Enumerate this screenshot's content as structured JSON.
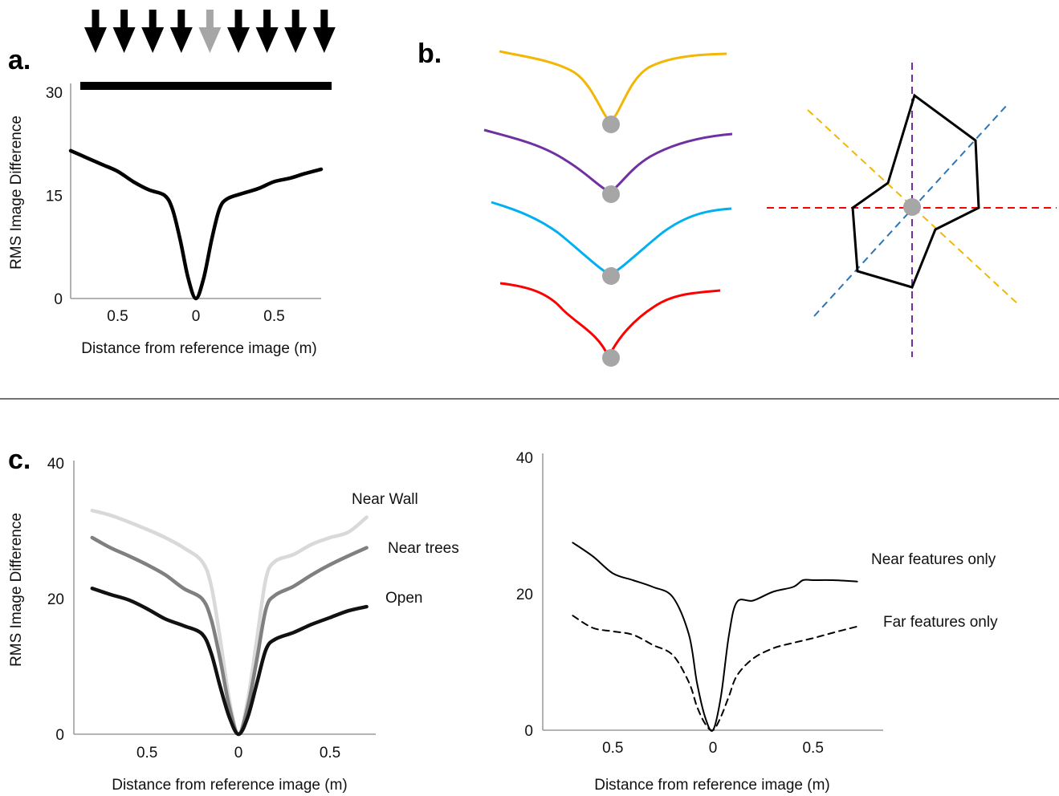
{
  "panels": {
    "a": "a.",
    "b": "b.",
    "c": "c."
  },
  "colors": {
    "black": "#000000",
    "grey_arrow": "#a6a6a6",
    "orange": "#f2b705",
    "purple": "#7030a0",
    "cyan": "#00b0f0",
    "red": "#ff0000",
    "marker_grey": "#a6a6a6",
    "dash_orange": "#f2b705",
    "dash_blue": "#2e75b6",
    "dash_purple": "#7030a0",
    "dash_red": "#ff0000",
    "near_wall": "#d9d9d9",
    "near_trees": "#808080",
    "open": "#111111"
  },
  "chart_data": [
    {
      "id": "a",
      "type": "line",
      "xlabel": "Distance from reference image (m)",
      "ylabel": "RMS Image Difference",
      "yticks": [
        "0",
        "15",
        "30"
      ],
      "xticks": [
        "0.5",
        "0",
        "0.5"
      ],
      "xlim": [
        -0.8,
        0.8
      ],
      "ylim": [
        0,
        30
      ],
      "arrows": {
        "count": 9,
        "highlighted_index": 4
      },
      "series": [
        {
          "color": "black",
          "x": [
            -0.8,
            -0.7,
            -0.6,
            -0.5,
            -0.4,
            -0.3,
            -0.2,
            -0.15,
            -0.1,
            -0.05,
            0,
            0.05,
            0.1,
            0.15,
            0.2,
            0.3,
            0.4,
            0.5,
            0.6,
            0.7,
            0.8
          ],
          "y": [
            21.5,
            20.5,
            19.5,
            18.5,
            17,
            15.8,
            15,
            13,
            8.5,
            3,
            0,
            3,
            8.5,
            13,
            14.5,
            15.3,
            16,
            17,
            17.5,
            18.2,
            18.8
          ]
        }
      ]
    },
    {
      "id": "c-left",
      "type": "line",
      "xlabel": "Distance from reference image (m)",
      "ylabel": "RMS Image Difference",
      "yticks": [
        "0",
        "20",
        "40"
      ],
      "xticks": [
        "0.5",
        "0",
        "0.5"
      ],
      "xlim": [
        -0.9,
        0.75
      ],
      "ylim": [
        0,
        40
      ],
      "series": [
        {
          "name": "Near Wall",
          "color": "near_wall",
          "x": [
            -0.8,
            -0.7,
            -0.6,
            -0.5,
            -0.4,
            -0.3,
            -0.2,
            -0.15,
            -0.1,
            -0.05,
            0,
            0.05,
            0.1,
            0.15,
            0.2,
            0.3,
            0.4,
            0.5,
            0.6,
            0.7
          ],
          "y": [
            33,
            32.3,
            31.3,
            30.2,
            29,
            27.5,
            25.5,
            22,
            14,
            5,
            0,
            5,
            14,
            23,
            25.5,
            26.5,
            28,
            29,
            29.8,
            32
          ]
        },
        {
          "name": "Near trees",
          "color": "near_trees",
          "x": [
            -0.8,
            -0.7,
            -0.6,
            -0.5,
            -0.4,
            -0.3,
            -0.2,
            -0.15,
            -0.1,
            -0.05,
            0,
            0.05,
            0.1,
            0.15,
            0.2,
            0.3,
            0.4,
            0.5,
            0.6,
            0.7
          ],
          "y": [
            29,
            27.5,
            26.3,
            25,
            23.5,
            21.5,
            20,
            17,
            11,
            4,
            0,
            4,
            11,
            18.5,
            20.5,
            21.8,
            23.5,
            25,
            26.3,
            27.5
          ]
        },
        {
          "name": "Open",
          "color": "open",
          "x": [
            -0.8,
            -0.7,
            -0.6,
            -0.5,
            -0.4,
            -0.3,
            -0.2,
            -0.15,
            -0.1,
            -0.05,
            0,
            0.05,
            0.1,
            0.15,
            0.2,
            0.3,
            0.4,
            0.5,
            0.6,
            0.7
          ],
          "y": [
            21.5,
            20.6,
            19.8,
            18.5,
            17,
            16,
            14.8,
            12,
            7,
            2.5,
            0,
            2.5,
            7.5,
            12.5,
            14,
            15,
            16.2,
            17.2,
            18.2,
            18.8
          ]
        }
      ]
    },
    {
      "id": "c-right",
      "type": "line",
      "xlabel": "Distance from reference image (m)",
      "ylabel": "",
      "yticks": [
        "0",
        "20",
        "40"
      ],
      "xticks": [
        "0.5",
        "0",
        "0.5"
      ],
      "xlim": [
        -0.85,
        0.85
      ],
      "ylim": [
        0,
        40
      ],
      "series": [
        {
          "name": "Near features only",
          "color": "black",
          "style": "solid",
          "x": [
            -0.7,
            -0.6,
            -0.5,
            -0.4,
            -0.3,
            -0.2,
            -0.12,
            -0.08,
            -0.04,
            0,
            0.04,
            0.08,
            0.12,
            0.2,
            0.3,
            0.4,
            0.45,
            0.5,
            0.6,
            0.72
          ],
          "y": [
            27.5,
            25.5,
            23,
            22,
            21,
            19.5,
            14,
            7,
            2,
            0,
            5,
            14,
            18.8,
            19,
            20.3,
            21,
            22,
            22,
            22,
            21.8
          ]
        },
        {
          "name": "Far features only",
          "color": "black",
          "style": "dashed",
          "x": [
            -0.7,
            -0.6,
            -0.5,
            -0.4,
            -0.3,
            -0.2,
            -0.12,
            -0.08,
            -0.04,
            0,
            0.04,
            0.08,
            0.12,
            0.2,
            0.3,
            0.4,
            0.5,
            0.6,
            0.72
          ],
          "y": [
            16.8,
            15,
            14.5,
            14,
            12.5,
            11,
            7,
            3.5,
            1,
            0,
            2,
            5,
            8,
            10.5,
            12,
            12.8,
            13.5,
            14.3,
            15.2
          ]
        }
      ]
    }
  ]
}
